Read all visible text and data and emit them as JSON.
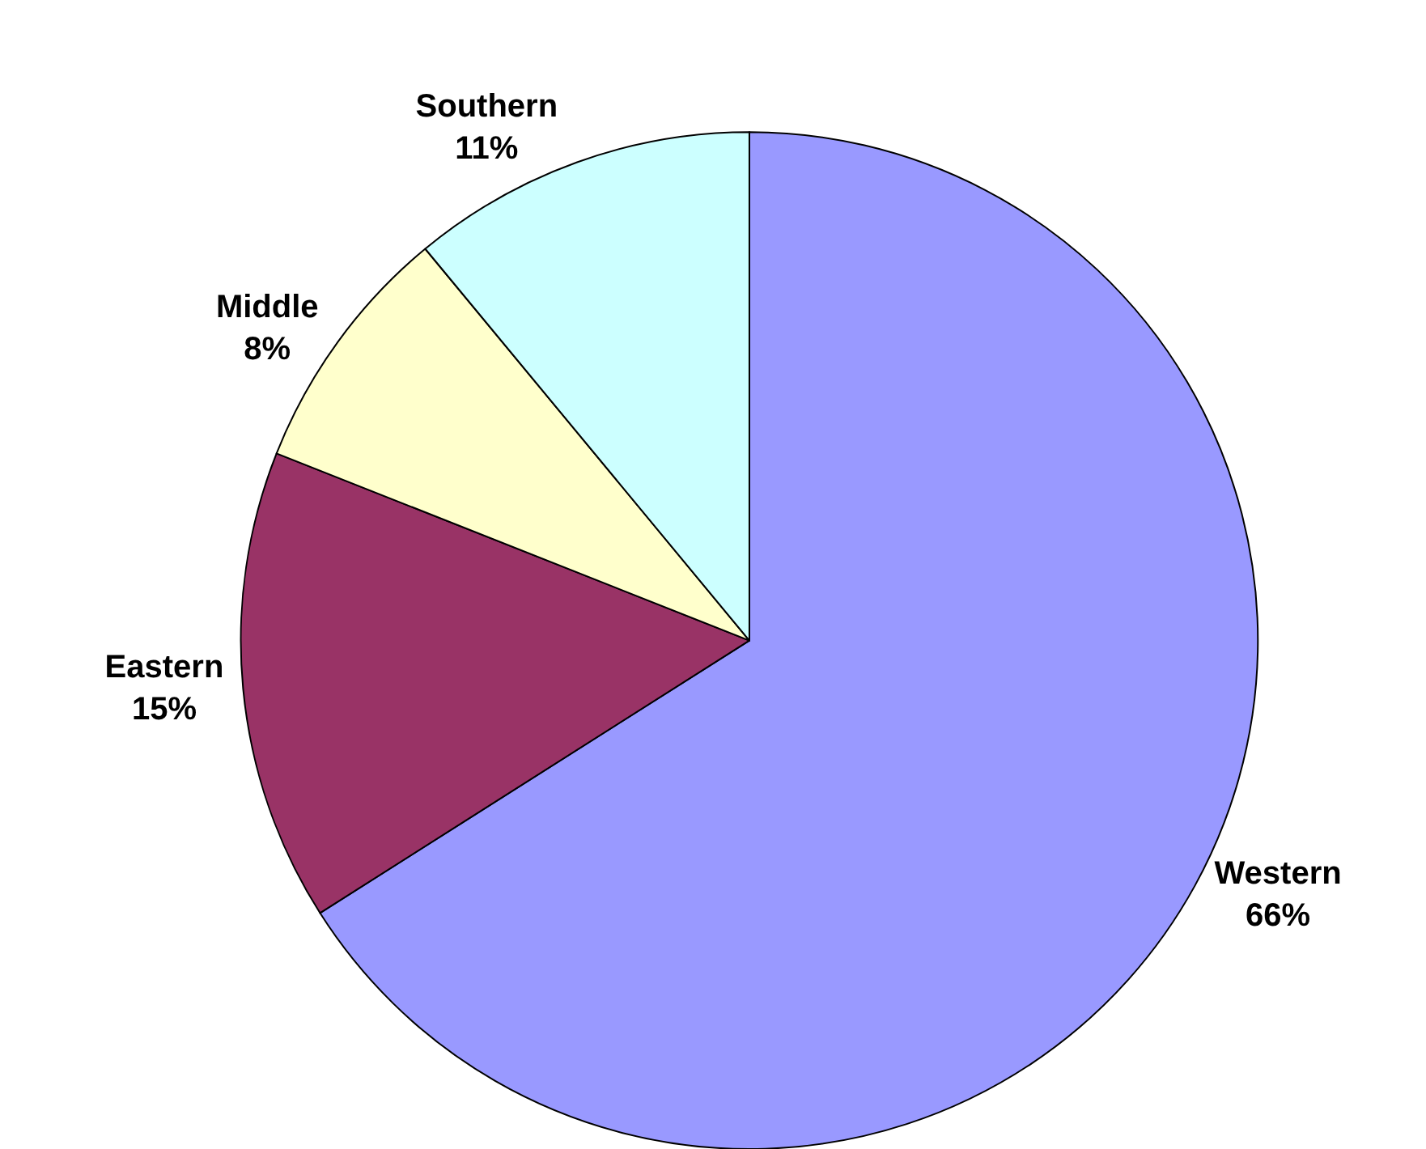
{
  "chart_data": {
    "type": "pie",
    "categories": [
      "Western",
      "Eastern",
      "Middle",
      "Southern"
    ],
    "values": [
      66,
      15,
      8,
      11
    ],
    "value_labels": [
      "66%",
      "15%",
      "8%",
      "11%"
    ],
    "colors": [
      "#9999ff",
      "#993366",
      "#ffffcc",
      "#ccffff"
    ],
    "legend": false
  }
}
